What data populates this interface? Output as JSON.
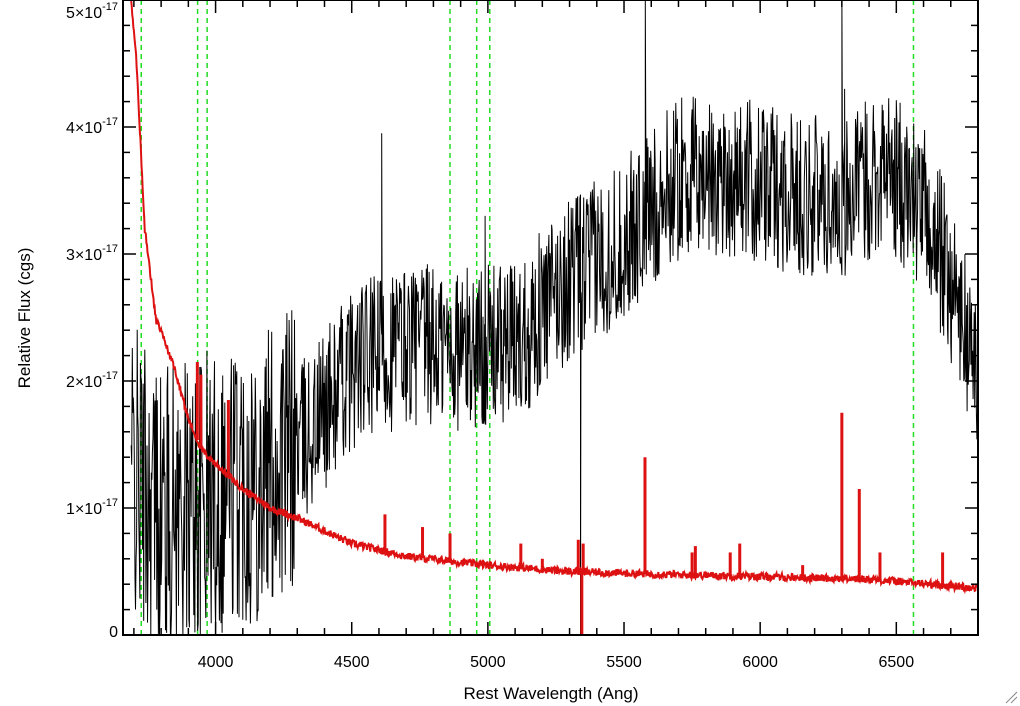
{
  "chart_data": {
    "type": "line",
    "title": "",
    "xlabel": "Rest Wavelength (Ang)",
    "ylabel": "Relative Flux (cgs)",
    "xlim": [
      3660,
      6800
    ],
    "ylim": [
      0,
      5e-17
    ],
    "x_ticks": [
      4000,
      4500,
      5000,
      5500,
      6000,
      6500
    ],
    "x_tick_labels": [
      "4000",
      "4500",
      "5000",
      "5500",
      "6000",
      "6500"
    ],
    "y_ticks": [
      0,
      1e-17,
      2e-17,
      3e-17,
      4e-17,
      5e-17
    ],
    "y_tick_labels": [
      {
        "mantissa": "0",
        "exponent": ""
      },
      {
        "mantissa": "1×10",
        "exponent": "-17"
      },
      {
        "mantissa": "2×10",
        "exponent": "-17"
      },
      {
        "mantissa": "3×10",
        "exponent": "-17"
      },
      {
        "mantissa": "4×10",
        "exponent": "-17"
      },
      {
        "mantissa": "5×10",
        "exponent": "-17"
      }
    ],
    "grid": false,
    "vertical_lines": {
      "color": "#22dd22",
      "style": "dashed",
      "x": [
        3727,
        3934,
        3969,
        4861,
        4959,
        5007,
        6563
      ]
    },
    "series": [
      {
        "color": "#000000",
        "noise_amplitude_1e17": 0.65,
        "continuum": [
          {
            "x": 3690,
            "y": 1.3
          },
          {
            "x": 3800,
            "y": 1.0
          },
          {
            "x": 3900,
            "y": 1.0
          },
          {
            "x": 4050,
            "y": 1.2
          },
          {
            "x": 4200,
            "y": 1.3
          },
          {
            "x": 4350,
            "y": 1.6
          },
          {
            "x": 4500,
            "y": 2.1
          },
          {
            "x": 4700,
            "y": 2.3
          },
          {
            "x": 4900,
            "y": 2.25
          },
          {
            "x": 5100,
            "y": 2.3
          },
          {
            "x": 5300,
            "y": 2.8
          },
          {
            "x": 5500,
            "y": 3.1
          },
          {
            "x": 5700,
            "y": 3.6
          },
          {
            "x": 5900,
            "y": 3.6
          },
          {
            "x": 6100,
            "y": 3.5
          },
          {
            "x": 6300,
            "y": 3.4
          },
          {
            "x": 6450,
            "y": 3.7
          },
          {
            "x": 6600,
            "y": 3.35
          },
          {
            "x": 6700,
            "y": 2.8
          },
          {
            "x": 6800,
            "y": 2.0
          }
        ],
        "features": [
          {
            "x": 3685,
            "y": 5.0
          },
          {
            "x": 4610,
            "y": 3.95
          },
          {
            "x": 4990,
            "y": 3.3
          },
          {
            "x": 5340,
            "y": 0.0
          },
          {
            "x": 5575,
            "y": 0.25
          },
          {
            "x": 5578,
            "y": 5.0
          },
          {
            "x": 5895,
            "y": 1.2
          },
          {
            "x": 6300,
            "y": 5.0
          },
          {
            "x": 6310,
            "y": 4.3
          },
          {
            "x": 6363,
            "y": 4.5
          }
        ]
      },
      {
        "color": "#dd1111",
        "continuum": [
          {
            "x": 3690,
            "y": 5.0
          },
          {
            "x": 3710,
            "y": 4.5
          },
          {
            "x": 3740,
            "y": 3.2
          },
          {
            "x": 3780,
            "y": 2.5
          },
          {
            "x": 3850,
            "y": 2.1
          },
          {
            "x": 3900,
            "y": 1.7
          },
          {
            "x": 3950,
            "y": 1.45
          },
          {
            "x": 4000,
            "y": 1.35
          },
          {
            "x": 4100,
            "y": 1.15
          },
          {
            "x": 4200,
            "y": 1.0
          },
          {
            "x": 4300,
            "y": 0.92
          },
          {
            "x": 4400,
            "y": 0.82
          },
          {
            "x": 4500,
            "y": 0.72
          },
          {
            "x": 4700,
            "y": 0.62
          },
          {
            "x": 5000,
            "y": 0.55
          },
          {
            "x": 5300,
            "y": 0.5
          },
          {
            "x": 5600,
            "y": 0.48
          },
          {
            "x": 6000,
            "y": 0.46
          },
          {
            "x": 6400,
            "y": 0.44
          },
          {
            "x": 6800,
            "y": 0.37
          }
        ],
        "spikes": [
          {
            "x": 3933,
            "y": 2.15
          },
          {
            "x": 3946,
            "y": 2.05
          },
          {
            "x": 4047,
            "y": 1.85
          },
          {
            "x": 4622,
            "y": 0.95
          },
          {
            "x": 4760,
            "y": 0.85
          },
          {
            "x": 4861,
            "y": 0.8
          },
          {
            "x": 5121,
            "y": 0.72
          },
          {
            "x": 5200,
            "y": 0.6
          },
          {
            "x": 5332,
            "y": 0.75
          },
          {
            "x": 5345,
            "y": -0.05
          },
          {
            "x": 5350,
            "y": 0.72
          },
          {
            "x": 5577,
            "y": 1.4
          },
          {
            "x": 5750,
            "y": 0.65
          },
          {
            "x": 5762,
            "y": 0.7
          },
          {
            "x": 5890,
            "y": 0.65
          },
          {
            "x": 5925,
            "y": 0.72
          },
          {
            "x": 6156,
            "y": 0.55
          },
          {
            "x": 6300,
            "y": 1.75
          },
          {
            "x": 6364,
            "y": 1.15
          },
          {
            "x": 6440,
            "y": 0.65
          },
          {
            "x": 6670,
            "y": 0.65
          }
        ]
      }
    ]
  }
}
